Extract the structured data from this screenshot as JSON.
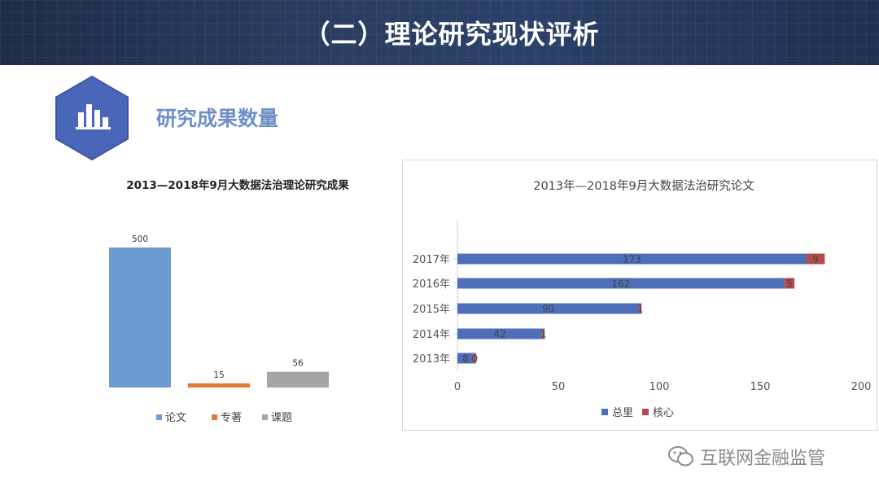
{
  "slide": {
    "title": "（二）理论研究现状评析",
    "section_heading": "研究成果数量",
    "watermark": "互联网金融监管"
  },
  "colors": {
    "banner": "#263a5c",
    "hex_fill": "#4a66b8",
    "heading": "#6f8fc9",
    "lunwen": "#6b9bd1",
    "zhuanzhu": "#e07b39",
    "keti": "#a5a5a5",
    "total": "#4f6fba",
    "core": "#b54a4a"
  },
  "chart_data": [
    {
      "type": "bar",
      "title": "2013—2018年9月大数据法治理论研究成果",
      "categories": [
        "论文",
        "专著",
        "课题"
      ],
      "values": [
        500,
        15,
        56
      ],
      "data_labels": [
        "500",
        "15",
        "56"
      ],
      "colors": [
        "#6b9bd1",
        "#e07b39",
        "#a5a5a5"
      ],
      "legend": [
        "论文",
        "专著",
        "课题"
      ],
      "legend_position": "bottom",
      "ylim": [
        0,
        500
      ],
      "grid": false
    },
    {
      "type": "bar",
      "orientation": "horizontal",
      "stacked": true,
      "title": "2013年—2018年9月大数据法治研究论文",
      "categories": [
        "2013年",
        "2014年",
        "2015年",
        "2016年",
        "2017年"
      ],
      "series": [
        {
          "name": "总里",
          "values": [
            8,
            42,
            90,
            162,
            173
          ],
          "labels": [
            "8",
            "42",
            "90",
            "162",
            "173"
          ],
          "color": "#4f6fba"
        },
        {
          "name": "核心",
          "values": [
            0,
            1,
            1,
            5,
            9
          ],
          "labels": [
            "0",
            "1",
            "1",
            "5",
            "9"
          ],
          "color": "#b54a4a"
        }
      ],
      "xticks": [
        "0",
        "50",
        "100",
        "150",
        "200"
      ],
      "xlim": [
        0,
        200
      ],
      "legend_position": "bottom",
      "grid": false
    }
  ]
}
